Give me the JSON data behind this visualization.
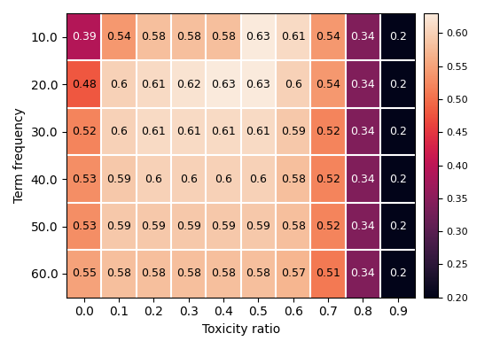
{
  "values": [
    [
      0.39,
      0.54,
      0.58,
      0.58,
      0.58,
      0.63,
      0.61,
      0.54,
      0.34,
      0.2
    ],
    [
      0.48,
      0.6,
      0.61,
      0.62,
      0.63,
      0.63,
      0.6,
      0.54,
      0.34,
      0.2
    ],
    [
      0.52,
      0.6,
      0.61,
      0.61,
      0.61,
      0.61,
      0.59,
      0.52,
      0.34,
      0.2
    ],
    [
      0.53,
      0.59,
      0.6,
      0.6,
      0.6,
      0.6,
      0.58,
      0.52,
      0.34,
      0.2
    ],
    [
      0.53,
      0.59,
      0.59,
      0.59,
      0.59,
      0.59,
      0.58,
      0.52,
      0.34,
      0.2
    ],
    [
      0.55,
      0.58,
      0.58,
      0.58,
      0.58,
      0.58,
      0.57,
      0.51,
      0.34,
      0.2
    ]
  ],
  "x_labels": [
    "0.0",
    "0.1",
    "0.2",
    "0.3",
    "0.4",
    "0.5",
    "0.6",
    "0.7",
    "0.8",
    "0.9"
  ],
  "y_labels": [
    "10.0",
    "20.0",
    "30.0",
    "40.0",
    "50.0",
    "60.0"
  ],
  "xlabel": "Toxicity ratio",
  "ylabel": "Term frequency",
  "vmin": 0.2,
  "vmax": 0.63,
  "colorbar_ticks": [
    0.2,
    0.25,
    0.3,
    0.35,
    0.4,
    0.45,
    0.5,
    0.55,
    0.6
  ],
  "text_threshold": 0.455,
  "white_text_color": "white",
  "black_text_color": "black",
  "font_size_annot": 9,
  "font_size_labels": 10,
  "figsize": [
    5.64,
    3.94
  ],
  "dpi": 100
}
